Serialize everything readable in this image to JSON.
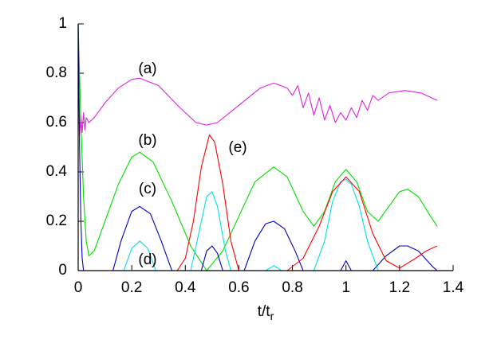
{
  "chart_data": {
    "type": "line",
    "xlabel": "t/t",
    "xlabel_subscript": "r",
    "xlim": [
      0,
      1.4
    ],
    "ylim": [
      0,
      1
    ],
    "xticks": [
      0,
      0.2,
      0.4,
      0.6,
      0.8,
      1,
      1.2,
      1.4
    ],
    "yticks": [
      0,
      0.2,
      0.4,
      0.6,
      0.8,
      1
    ],
    "grid": false,
    "series": [
      {
        "name": "(a)",
        "color": "#e020e0",
        "x": [
          0,
          0.005,
          0.01,
          0.015,
          0.02,
          0.025,
          0.03,
          0.04,
          0.06,
          0.1,
          0.15,
          0.2,
          0.23,
          0.3,
          0.38,
          0.44,
          0.48,
          0.52,
          0.6,
          0.68,
          0.73,
          0.78,
          0.8,
          0.82,
          0.84,
          0.86,
          0.88,
          0.9,
          0.92,
          0.94,
          0.96,
          0.98,
          1.0,
          1.02,
          1.04,
          1.06,
          1.08,
          1.1,
          1.12,
          1.16,
          1.22,
          1.28,
          1.34
        ],
        "values": [
          1,
          0.55,
          0.63,
          0.56,
          0.64,
          0.57,
          0.62,
          0.6,
          0.62,
          0.68,
          0.74,
          0.775,
          0.78,
          0.75,
          0.66,
          0.6,
          0.59,
          0.6,
          0.67,
          0.74,
          0.76,
          0.74,
          0.71,
          0.75,
          0.66,
          0.72,
          0.63,
          0.7,
          0.61,
          0.67,
          0.6,
          0.64,
          0.61,
          0.66,
          0.62,
          0.69,
          0.65,
          0.71,
          0.69,
          0.72,
          0.73,
          0.72,
          0.69
        ]
      },
      {
        "name": "(b)",
        "color": "#00dd00",
        "x": [
          0,
          0.01,
          0.02,
          0.03,
          0.04,
          0.06,
          0.1,
          0.15,
          0.2,
          0.23,
          0.28,
          0.35,
          0.42,
          0.48,
          0.54,
          0.6,
          0.66,
          0.73,
          0.78,
          0.84,
          0.88,
          0.92,
          0.96,
          1.0,
          1.04,
          1.08,
          1.12,
          1.16,
          1.2,
          1.23,
          1.27,
          1.31,
          1.34
        ],
        "values": [
          1,
          0.6,
          0.3,
          0.12,
          0.06,
          0.08,
          0.2,
          0.35,
          0.46,
          0.48,
          0.44,
          0.28,
          0.1,
          0,
          0.08,
          0.22,
          0.36,
          0.42,
          0.38,
          0.24,
          0.18,
          0.24,
          0.36,
          0.41,
          0.36,
          0.24,
          0.2,
          0.26,
          0.32,
          0.33,
          0.3,
          0.23,
          0.18
        ]
      },
      {
        "name": "(c)",
        "color": "#0000c0",
        "x": [
          0,
          0.005,
          0.01,
          0.015,
          0.02,
          0.05,
          0.13,
          0.16,
          0.2,
          0.23,
          0.27,
          0.31,
          0.35,
          0.4,
          0.46,
          0.48,
          0.5,
          0.52,
          0.54,
          0.58,
          0.62,
          0.66,
          0.7,
          0.73,
          0.77,
          0.81,
          0.84,
          0.9,
          0.98,
          1.0,
          1.02,
          1.06,
          1.1,
          1.15,
          1.2,
          1.23,
          1.27,
          1.32,
          1.34
        ],
        "values": [
          1,
          0.5,
          0.2,
          0.05,
          0,
          null,
          0,
          0.12,
          0.24,
          0.26,
          0.23,
          0.12,
          0,
          null,
          0,
          0.08,
          0.1,
          0.07,
          0,
          null,
          0,
          0.12,
          0.19,
          0.2,
          0.17,
          0.08,
          0,
          null,
          0,
          0.04,
          0,
          null,
          0,
          0.06,
          0.1,
          0.1,
          0.08,
          0.02,
          0
        ]
      },
      {
        "name": "(d)",
        "color": "#00e0e0",
        "x": [
          0.17,
          0.2,
          0.23,
          0.26,
          0.29,
          0.35,
          0.42,
          0.45,
          0.48,
          0.5,
          0.52,
          0.55,
          0.57,
          0.65,
          0.7,
          0.73,
          0.76,
          0.82,
          0.88,
          0.92,
          0.95,
          0.98,
          1.0,
          1.02,
          1.05,
          1.08,
          1.12
        ],
        "values": [
          0,
          0.09,
          0.12,
          0.09,
          0,
          null,
          0,
          0.15,
          0.3,
          0.32,
          0.26,
          0.08,
          0,
          null,
          0,
          0.02,
          0,
          null,
          0,
          0.12,
          0.28,
          0.36,
          0.37,
          0.35,
          0.26,
          0.12,
          0
        ]
      },
      {
        "name": "(e)",
        "color": "#ff0000",
        "x": [
          0.37,
          0.4,
          0.43,
          0.46,
          0.49,
          0.51,
          0.54,
          0.57,
          0.6,
          0.7,
          0.78,
          0.84,
          0.9,
          0.95,
          1.0,
          1.05,
          1.1,
          1.15,
          1.2,
          1.26,
          1.3,
          1.34
        ],
        "values": [
          0,
          0.05,
          0.2,
          0.42,
          0.55,
          0.52,
          0.35,
          0.12,
          0,
          null,
          0,
          0.05,
          0.18,
          0.32,
          0.38,
          0.32,
          0.15,
          0.04,
          0.01,
          0.05,
          0.08,
          0.1
        ]
      }
    ]
  }
}
